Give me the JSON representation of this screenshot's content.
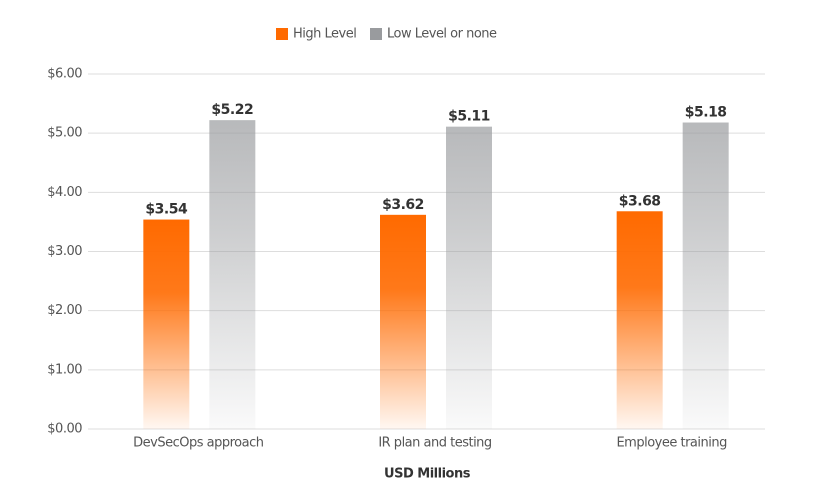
{
  "chart_data": {
    "type": "bar",
    "categories": [
      "DevSecOps approach",
      "IR plan and testing",
      "Employee training"
    ],
    "series": [
      {
        "name": "High Level",
        "color": "#ff6a00",
        "values": [
          3.54,
          3.62,
          3.68
        ],
        "value_labels": [
          "$3.54",
          "$3.62",
          "$3.68"
        ]
      },
      {
        "name": "Low Level or none",
        "color": "#999b9e",
        "values": [
          5.22,
          5.11,
          5.18
        ],
        "value_labels": [
          "$5.22",
          "$5.11",
          "$5.18"
        ]
      }
    ],
    "xlabel": "USD Millions",
    "ylim": [
      0,
      6
    ],
    "yticks": [
      {
        "value": 0,
        "label": "$0.00"
      },
      {
        "value": 1,
        "label": "$1.00"
      },
      {
        "value": 2,
        "label": "$2.00"
      },
      {
        "value": 3,
        "label": "$3.00"
      },
      {
        "value": 4,
        "label": "$4.00"
      },
      {
        "value": 5,
        "label": "$5.00"
      },
      {
        "value": 6,
        "label": "$6.00"
      }
    ],
    "grid": true,
    "legend": "top"
  }
}
